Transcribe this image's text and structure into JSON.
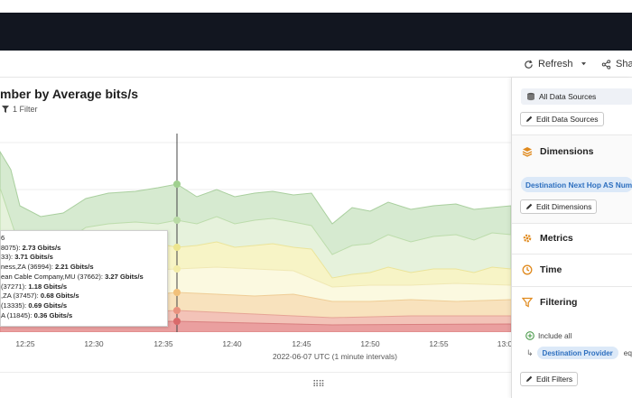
{
  "toolbar": {
    "refresh_label": "Refresh",
    "share_label": "Sha"
  },
  "chart": {
    "title": "mber by Average bits/s",
    "filter_badge": "1 Filter",
    "x_caption": "2022-06-07 UTC (1 minute intervals)",
    "tooltip_rows": [
      {
        "name": "6",
        "value": ""
      },
      {
        "name": "8075): ",
        "value": "2.73 Gbits/s"
      },
      {
        "name": "33): ",
        "value": "3.71 Gbits/s"
      },
      {
        "name": "ness,ZA (36994): ",
        "value": "2.21 Gbits/s"
      },
      {
        "name": "ean Cable Company,MU (37662): ",
        "value": "3.27 Gbits/s"
      },
      {
        "name": "(37271): ",
        "value": "1.18 Gbits/s"
      },
      {
        "name": ",ZA (37457): ",
        "value": "0.68 Gbits/s"
      },
      {
        "name": "(13335): ",
        "value": "0.69 Gbits/s"
      },
      {
        "name": "A (11845): ",
        "value": "0.36 Gbits/s"
      }
    ]
  },
  "chart_data": {
    "type": "area",
    "x": [
      "12:25",
      "12:30",
      "12:35",
      "12:40",
      "12:45",
      "12:50",
      "12:55",
      "13:0"
    ],
    "xlabel": "2022-06-07 UTC (1 minute intervals)",
    "title": "mber by Average bits/s",
    "colors": {
      "band_green_dark": "#cfe6c8",
      "band_green_light": "#e4f1dc",
      "band_yellow": "#f4f2c4",
      "band_yellow_light": "#faf8de",
      "band_orange": "#f6dfb8",
      "band_salmon": "#f3c0b6",
      "band_red": "#e8a3a3"
    }
  },
  "sidebar": {
    "data_sources_label": "All Data Sources",
    "edit_data_sources": "Edit Data Sources",
    "dimensions_heading": "Dimensions",
    "dimension_chip": "Destination Next Hop AS Num",
    "edit_dimensions": "Edit Dimensions",
    "metrics_heading": "Metrics",
    "time_heading": "Time",
    "filtering_heading": "Filtering",
    "include_all": "Include all",
    "filter_chip": "Destination Provider",
    "filter_eq": "equa",
    "edit_filters": "Edit Filters",
    "accent": "#e08a1e"
  }
}
